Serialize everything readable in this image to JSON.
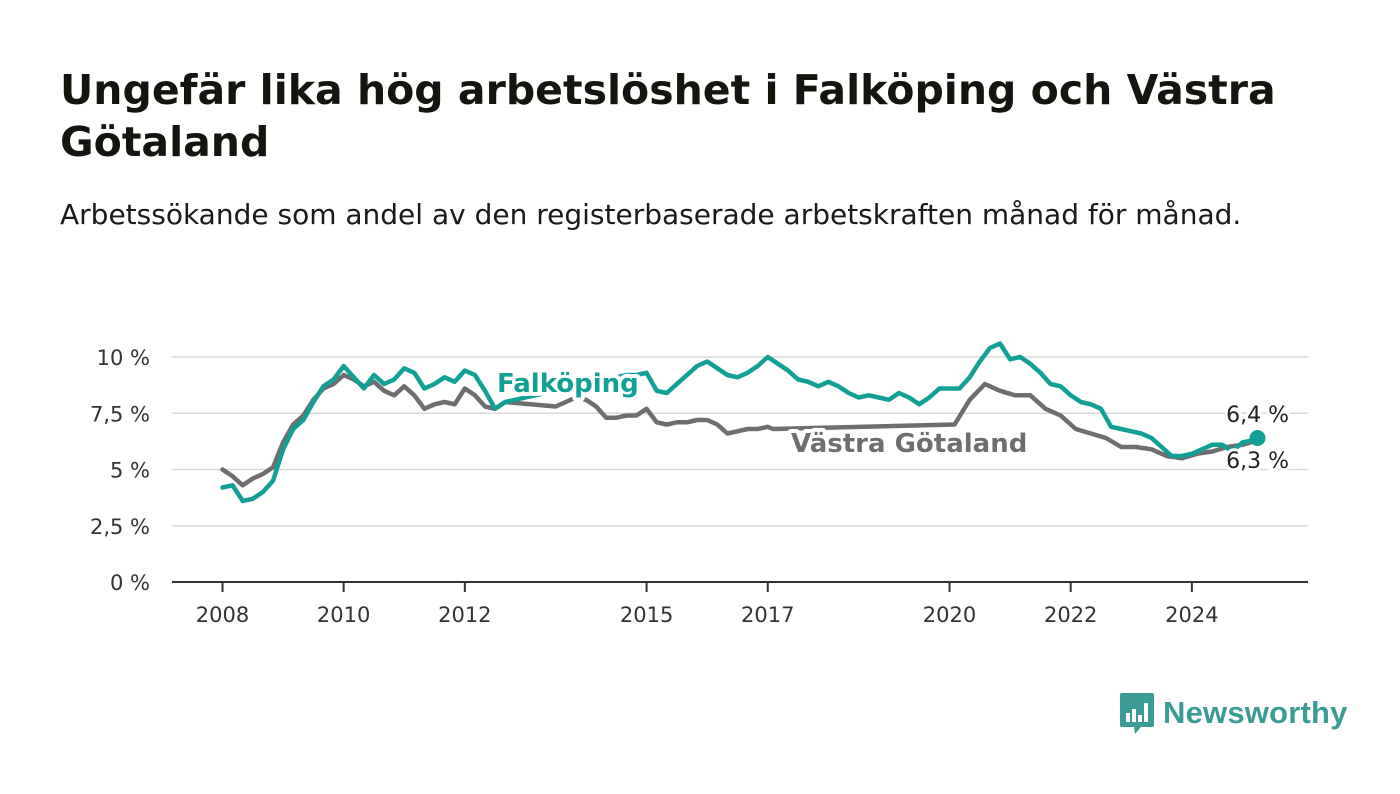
{
  "header": {
    "title": "Ungefär lika hög arbetslöshet i Falköping och Västra Götaland",
    "subtitle": "Arbetssökande som andel av den registerbaserade arbetskraften månad för månad."
  },
  "brand": {
    "name": "Newsworthy",
    "icon": "newsworthy-logo-icon",
    "color": "#3a9c95"
  },
  "chart_data": {
    "type": "line",
    "title": "Ungefär lika hög arbetslöshet i Falköping och Västra Götaland",
    "subtitle": "Arbetssökande som andel av den registerbaserade arbetskraften månad för månad.",
    "xlabel": "",
    "ylabel": "",
    "x_ticks": [
      "2008",
      "2010",
      "2012",
      "2015",
      "2017",
      "2020",
      "2022",
      "2024"
    ],
    "y_ticks": [
      "0 %",
      "2,5 %",
      "5 %",
      "7,5 %",
      "10 %"
    ],
    "ylim": [
      0,
      10
    ],
    "xlim": [
      "2007-03",
      "2025-12"
    ],
    "grid": "horizontal",
    "legend": "inline-labels",
    "series": [
      {
        "name": "Falköping",
        "color": "#12a096",
        "end_label": "6,4 %",
        "points": [
          [
            "2008-01",
            4.2
          ],
          [
            "2008-03",
            4.3
          ],
          [
            "2008-05",
            3.6
          ],
          [
            "2008-07",
            3.7
          ],
          [
            "2008-09",
            4.0
          ],
          [
            "2008-11",
            4.5
          ],
          [
            "2009-01",
            5.9
          ],
          [
            "2009-03",
            6.8
          ],
          [
            "2009-05",
            7.2
          ],
          [
            "2009-07",
            8.0
          ],
          [
            "2009-09",
            8.7
          ],
          [
            "2009-11",
            9.0
          ],
          [
            "2010-01",
            9.6
          ],
          [
            "2010-03",
            9.1
          ],
          [
            "2010-05",
            8.6
          ],
          [
            "2010-07",
            9.2
          ],
          [
            "2010-09",
            8.8
          ],
          [
            "2010-11",
            9.0
          ],
          [
            "2011-01",
            9.5
          ],
          [
            "2011-03",
            9.3
          ],
          [
            "2011-05",
            8.6
          ],
          [
            "2011-07",
            8.8
          ],
          [
            "2011-09",
            9.1
          ],
          [
            "2011-11",
            8.9
          ],
          [
            "2012-01",
            9.4
          ],
          [
            "2012-03",
            9.2
          ],
          [
            "2012-05",
            8.5
          ],
          [
            "2012-07",
            7.7
          ],
          [
            "2012-09",
            8.0
          ],
          [
            "2014-09",
            9.2
          ],
          [
            "2014-11",
            9.2
          ],
          [
            "2015-01",
            9.3
          ],
          [
            "2015-03",
            8.5
          ],
          [
            "2015-05",
            8.4
          ],
          [
            "2015-07",
            8.8
          ],
          [
            "2015-09",
            9.2
          ],
          [
            "2015-11",
            9.6
          ],
          [
            "2016-01",
            9.8
          ],
          [
            "2016-03",
            9.5
          ],
          [
            "2016-05",
            9.2
          ],
          [
            "2016-07",
            9.1
          ],
          [
            "2016-09",
            9.3
          ],
          [
            "2016-11",
            9.6
          ],
          [
            "2017-01",
            10.0
          ],
          [
            "2017-03",
            9.7
          ],
          [
            "2017-05",
            9.4
          ],
          [
            "2017-07",
            9.0
          ],
          [
            "2017-09",
            8.9
          ],
          [
            "2017-11",
            8.7
          ],
          [
            "2018-01",
            8.9
          ],
          [
            "2018-03",
            8.7
          ],
          [
            "2018-05",
            8.4
          ],
          [
            "2018-07",
            8.2
          ],
          [
            "2018-09",
            8.3
          ],
          [
            "2018-11",
            8.2
          ],
          [
            "2019-01",
            8.1
          ],
          [
            "2019-03",
            8.4
          ],
          [
            "2019-05",
            8.2
          ],
          [
            "2019-07",
            7.9
          ],
          [
            "2019-09",
            8.2
          ],
          [
            "2019-11",
            8.6
          ],
          [
            "2020-01",
            8.6
          ],
          [
            "2020-03",
            8.6
          ],
          [
            "2020-05",
            9.1
          ],
          [
            "2020-07",
            9.8
          ],
          [
            "2020-09",
            10.4
          ],
          [
            "2020-11",
            10.6
          ],
          [
            "2021-01",
            9.9
          ],
          [
            "2021-03",
            10.0
          ],
          [
            "2021-05",
            9.7
          ],
          [
            "2021-07",
            9.3
          ],
          [
            "2021-09",
            8.8
          ],
          [
            "2021-11",
            8.7
          ],
          [
            "2022-01",
            8.3
          ],
          [
            "2022-03",
            8.0
          ],
          [
            "2022-05",
            7.9
          ],
          [
            "2022-07",
            7.7
          ],
          [
            "2022-09",
            6.9
          ],
          [
            "2022-11",
            6.8
          ],
          [
            "2023-01",
            6.7
          ],
          [
            "2023-03",
            6.6
          ],
          [
            "2023-05",
            6.4
          ],
          [
            "2023-07",
            6.0
          ],
          [
            "2023-09",
            5.6
          ],
          [
            "2023-11",
            5.6
          ],
          [
            "2024-01",
            5.7
          ],
          [
            "2024-03",
            5.9
          ],
          [
            "2024-05",
            6.1
          ],
          [
            "2024-07",
            6.1
          ],
          [
            "2024-09",
            5.8
          ],
          [
            "2024-11",
            6.2
          ],
          [
            "2025-01",
            6.3
          ],
          [
            "2025-02",
            6.4
          ]
        ]
      },
      {
        "name": "Västra Götaland",
        "color": "#6e6e70",
        "end_label": "6,3 %",
        "points": [
          [
            "2008-01",
            5.0
          ],
          [
            "2008-03",
            4.7
          ],
          [
            "2008-05",
            4.3
          ],
          [
            "2008-07",
            4.6
          ],
          [
            "2008-09",
            4.8
          ],
          [
            "2008-11",
            5.1
          ],
          [
            "2009-01",
            6.2
          ],
          [
            "2009-03",
            7.0
          ],
          [
            "2009-05",
            7.4
          ],
          [
            "2009-07",
            8.1
          ],
          [
            "2009-09",
            8.6
          ],
          [
            "2009-11",
            8.8
          ],
          [
            "2010-01",
            9.2
          ],
          [
            "2010-03",
            9.0
          ],
          [
            "2010-05",
            8.7
          ],
          [
            "2010-07",
            8.9
          ],
          [
            "2010-09",
            8.5
          ],
          [
            "2010-11",
            8.3
          ],
          [
            "2011-01",
            8.7
          ],
          [
            "2011-03",
            8.3
          ],
          [
            "2011-05",
            7.7
          ],
          [
            "2011-07",
            7.9
          ],
          [
            "2011-09",
            8.0
          ],
          [
            "2011-11",
            7.9
          ],
          [
            "2012-01",
            8.6
          ],
          [
            "2012-03",
            8.3
          ],
          [
            "2012-05",
            7.8
          ],
          [
            "2012-07",
            7.7
          ],
          [
            "2012-09",
            8.0
          ],
          [
            "2013-07",
            7.8
          ],
          [
            "2013-09",
            8.0
          ],
          [
            "2013-11",
            8.2
          ],
          [
            "2014-01",
            8.1
          ],
          [
            "2014-03",
            7.8
          ],
          [
            "2014-05",
            7.3
          ],
          [
            "2014-07",
            7.3
          ],
          [
            "2014-09",
            7.4
          ],
          [
            "2014-11",
            7.4
          ],
          [
            "2015-01",
            7.7
          ],
          [
            "2015-03",
            7.1
          ],
          [
            "2015-05",
            7.0
          ],
          [
            "2015-07",
            7.1
          ],
          [
            "2015-09",
            7.1
          ],
          [
            "2015-11",
            7.2
          ],
          [
            "2016-01",
            7.2
          ],
          [
            "2016-03",
            7.0
          ],
          [
            "2016-05",
            6.6
          ],
          [
            "2016-07",
            6.7
          ],
          [
            "2016-09",
            6.8
          ],
          [
            "2016-11",
            6.8
          ],
          [
            "2017-01",
            6.9
          ],
          [
            "2017-02",
            6.8
          ],
          [
            "2020-02",
            7.0
          ],
          [
            "2020-05",
            8.1
          ],
          [
            "2020-08",
            8.8
          ],
          [
            "2020-11",
            8.5
          ],
          [
            "2021-02",
            8.3
          ],
          [
            "2021-05",
            8.3
          ],
          [
            "2021-08",
            7.7
          ],
          [
            "2021-11",
            7.4
          ],
          [
            "2022-02",
            6.8
          ],
          [
            "2022-05",
            6.6
          ],
          [
            "2022-08",
            6.4
          ],
          [
            "2022-11",
            6.0
          ],
          [
            "2023-02",
            6.0
          ],
          [
            "2023-05",
            5.9
          ],
          [
            "2023-08",
            5.6
          ],
          [
            "2023-11",
            5.5
          ],
          [
            "2024-02",
            5.7
          ],
          [
            "2024-05",
            5.8
          ],
          [
            "2024-08",
            6.0
          ],
          [
            "2024-11",
            6.1
          ],
          [
            "2025-02",
            6.3
          ]
        ]
      }
    ]
  }
}
